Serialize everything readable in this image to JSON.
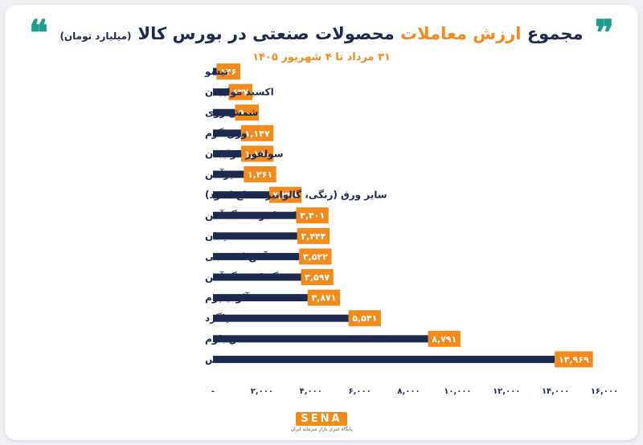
{
  "header": {
    "quote_left": "❝",
    "quote_right": "❞",
    "title_main": "مجموع ",
    "title_highlight": "ارزش معاملات",
    "title_rest": " محصولات صنعتی در بورس کالا",
    "unit": "(میلیارد تومان)",
    "subtitle": "۳۱ مرداد تا ۴ شهریور ۱۴۰۵"
  },
  "footer": {
    "logo": "SENA",
    "logo_sub": "پایگاه خبری بازار سرمایه ایران"
  },
  "colors": {
    "bar": "#1b2a4e",
    "value_box": "#f28a1c",
    "title": "#1b2a4e",
    "accent": "#1f9c8d"
  },
  "chart_data": {
    "type": "bar",
    "orientation": "horizontal",
    "categories": [
      "تیشو",
      "اکسید مولیبدن",
      "شمش روی",
      "ورق گرم",
      "سولفور مولیبدن",
      "تیرآهن",
      "سایر ورق (رنگی، گالوانیزه، قلع اندود)",
      "کنسانتره سنگ آهن",
      "سیمان",
      "آهن اسفنجی",
      "گندله سنگ آهن",
      "آلومینیوم",
      "میلگرد",
      "شمش بلوم",
      "مس"
    ],
    "values": [
      146,
      637,
      900,
      1147,
      1150,
      1261,
      2298,
      3401,
      3444,
      3522,
      3597,
      3871,
      5541,
      8791,
      13969
    ],
    "value_labels": [
      "۱۴۶",
      "۶۳۷",
      "۹۰۰",
      "۱,۱۴۷",
      "۱,۱۵۰",
      "۱,۲۶۱",
      "۲,۲۹۸",
      "۳,۴۰۱",
      "۳,۴۴۴",
      "۳,۵۲۲",
      "۳,۵۹۷",
      "۳,۸۷۱",
      "۵,۵۴۱",
      "۸,۷۹۱",
      "۱۳,۹۶۹"
    ],
    "xlim": [
      0,
      16000
    ],
    "xticks": [
      0,
      2000,
      4000,
      6000,
      8000,
      10000,
      12000,
      14000,
      16000
    ],
    "xtick_labels": [
      "-",
      "۲,۰۰۰",
      "۴,۰۰۰",
      "۶,۰۰۰",
      "۸,۰۰۰",
      "۱۰,۰۰۰",
      "۱۲,۰۰۰",
      "۱۴,۰۰۰",
      "۱۶,۰۰۰"
    ],
    "grid": false,
    "legend": "none"
  }
}
